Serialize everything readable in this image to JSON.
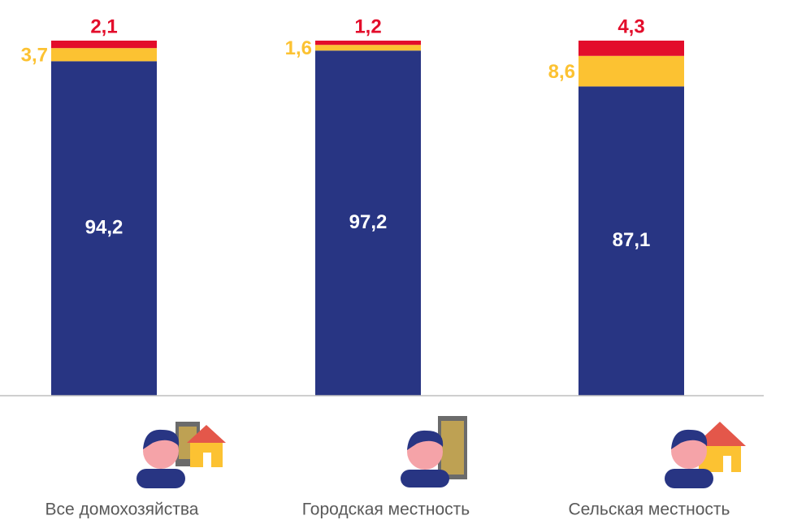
{
  "chart_data": {
    "type": "bar",
    "stacked": true,
    "categories": [
      "Все домохозяйства",
      "Городская местность",
      "Сельская местность"
    ],
    "ylim": [
      0,
      100
    ],
    "series": [
      {
        "color": "#283583",
        "values": [
          94.2,
          97.2,
          87.1
        ],
        "value_labels": [
          "94,2",
          "97,2",
          "87,1"
        ]
      },
      {
        "color": "#fcc232",
        "values": [
          3.7,
          1.6,
          8.6
        ],
        "value_labels": [
          "3,7",
          "1,6",
          "8,6"
        ]
      },
      {
        "color": "#e30d2b",
        "values": [
          2.1,
          1.2,
          4.3
        ],
        "value_labels": [
          "2,1",
          "1,2",
          "4,3"
        ]
      }
    ]
  }
}
